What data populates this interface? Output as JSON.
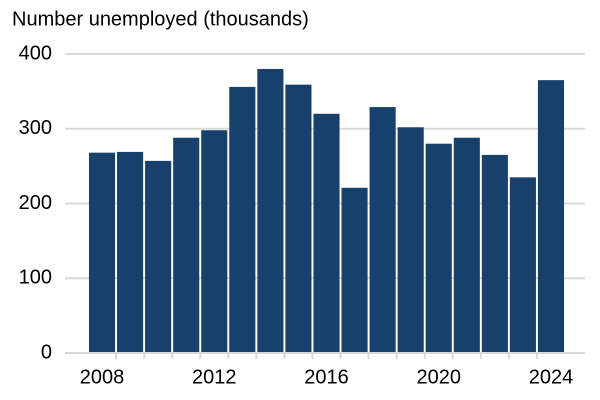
{
  "chart_data": {
    "type": "bar",
    "title": "Number unemployed (thousands)",
    "x": [
      2008,
      2009,
      2010,
      2011,
      2012,
      2013,
      2014,
      2015,
      2016,
      2017,
      2018,
      2019,
      2020,
      2021,
      2022,
      2023,
      2024
    ],
    "values": [
      268,
      269,
      257,
      288,
      298,
      356,
      380,
      359,
      320,
      221,
      329,
      302,
      280,
      288,
      265,
      235,
      365
    ],
    "color": "#17406d",
    "xlim": [
      2007.5,
      2024.5
    ],
    "xticks": [
      2008,
      2012,
      2016,
      2020,
      2024
    ],
    "ylim": [
      0,
      400
    ],
    "yticks": [
      0,
      100,
      200,
      300,
      400
    ],
    "grid": true
  }
}
